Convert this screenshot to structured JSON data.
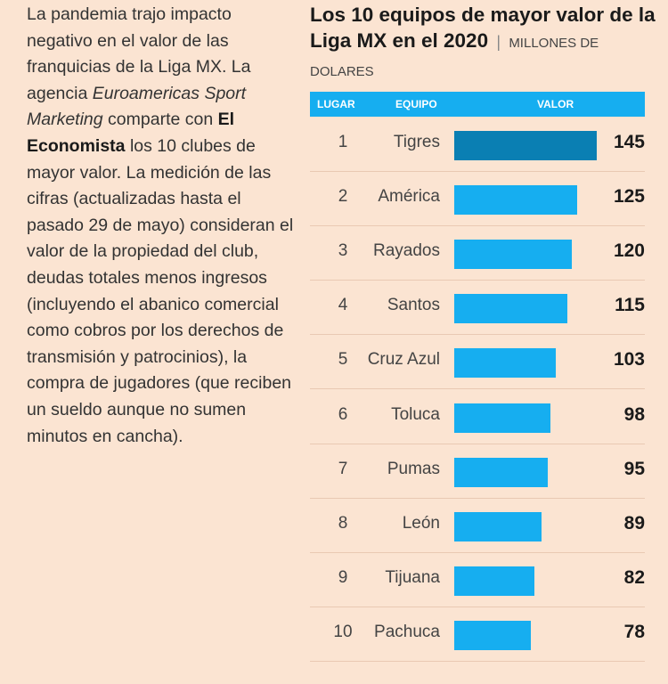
{
  "intro": {
    "p1": "La pandemia trajo impacto negativo en el valor de las franquicias de la Liga MX. La agencia ",
    "agency": "Euroamericas Sport Marketing",
    "p2": " comparte con ",
    "newspaper": "El Economista",
    "p3": " los 10 clubes de mayor valor. La medición de las cifras (actualizadas hasta el pasado 29 de mayo) consideran el valor de la propiedad del club, deudas totales menos ingresos (incluyendo el abanico comercial como cobros por los derechos de transmisión y patrocinios), la compra de jugadores (que reciben un sueldo aunque no sumen minutos en cancha)."
  },
  "chart_data": {
    "type": "bar",
    "orientation": "horizontal",
    "title": "Los 10 equipos de mayor valor de la Liga MX en el 2020",
    "title_separator": "|",
    "units": "MILLONES DE DOLARES",
    "columns": [
      "LUGAR",
      "EQUIPO",
      "VALOR"
    ],
    "ranks": [
      "1",
      "2",
      "3",
      "4",
      "5",
      "6",
      "7",
      "8",
      "9",
      "10"
    ],
    "categories": [
      "Tigres",
      "América",
      "Rayados",
      "Santos",
      "Cruz Azul",
      "Toluca",
      "Pumas",
      "León",
      "Tijuana",
      "Pachuca"
    ],
    "values": [
      145,
      125,
      120,
      115,
      103,
      98,
      95,
      89,
      82,
      78
    ],
    "xlim": [
      0,
      145
    ],
    "highlight_color": "#0a7fb3",
    "bar_color": "#16aef0"
  }
}
